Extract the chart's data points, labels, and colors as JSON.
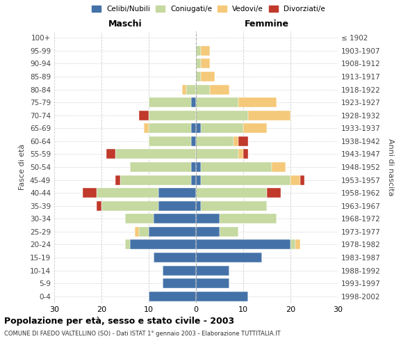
{
  "age_groups": [
    "0-4",
    "5-9",
    "10-14",
    "15-19",
    "20-24",
    "25-29",
    "30-34",
    "35-39",
    "40-44",
    "45-49",
    "50-54",
    "55-59",
    "60-64",
    "65-69",
    "70-74",
    "75-79",
    "80-84",
    "85-89",
    "90-94",
    "95-99",
    "100+"
  ],
  "birth_years": [
    "1998-2002",
    "1993-1997",
    "1988-1992",
    "1983-1987",
    "1978-1982",
    "1973-1977",
    "1968-1972",
    "1963-1967",
    "1958-1962",
    "1953-1957",
    "1948-1952",
    "1943-1947",
    "1938-1942",
    "1933-1937",
    "1928-1932",
    "1923-1927",
    "1918-1922",
    "1913-1917",
    "1908-1912",
    "1903-1907",
    "≤ 1902"
  ],
  "males": {
    "celibi": [
      10,
      7,
      7,
      9,
      14,
      10,
      9,
      8,
      8,
      1,
      1,
      0,
      1,
      1,
      0,
      1,
      0,
      0,
      0,
      0,
      0
    ],
    "coniugati": [
      0,
      0,
      0,
      0,
      1,
      2,
      6,
      12,
      13,
      15,
      13,
      17,
      9,
      9,
      10,
      9,
      2,
      0,
      0,
      0,
      0
    ],
    "vedovi": [
      0,
      0,
      0,
      0,
      0,
      1,
      0,
      0,
      0,
      0,
      0,
      0,
      0,
      1,
      0,
      0,
      1,
      0,
      0,
      0,
      0
    ],
    "divorziati": [
      0,
      0,
      0,
      0,
      0,
      0,
      0,
      1,
      3,
      1,
      0,
      2,
      0,
      0,
      2,
      0,
      0,
      0,
      0,
      0,
      0
    ]
  },
  "females": {
    "nubili": [
      11,
      7,
      7,
      14,
      20,
      5,
      5,
      1,
      0,
      1,
      1,
      0,
      0,
      1,
      0,
      0,
      0,
      0,
      0,
      0,
      0
    ],
    "coniugate": [
      0,
      0,
      0,
      0,
      1,
      4,
      12,
      14,
      15,
      19,
      15,
      9,
      8,
      9,
      11,
      9,
      3,
      1,
      1,
      1,
      0
    ],
    "vedove": [
      0,
      0,
      0,
      0,
      1,
      0,
      0,
      0,
      0,
      2,
      3,
      1,
      1,
      5,
      9,
      8,
      4,
      3,
      2,
      2,
      0
    ],
    "divorziate": [
      0,
      0,
      0,
      0,
      0,
      0,
      0,
      0,
      3,
      1,
      0,
      1,
      2,
      0,
      0,
      0,
      0,
      0,
      0,
      0,
      0
    ]
  },
  "colors": {
    "celibi": "#4472a8",
    "coniugati": "#c5d9a0",
    "vedovi": "#f5c97a",
    "divorziati": "#c0392b"
  },
  "title": "Popolazione per età, sesso e stato civile - 2003",
  "subtitle": "COMUNE DI FAEDO VALTELLINO (SO) - Dati ISTAT 1° gennaio 2003 - Elaborazione TUTTITALIA.IT",
  "ylabel": "Fasce di età",
  "ylabel_right": "Anni di nascita",
  "xlabel_left": "Maschi",
  "xlabel_right": "Femmine",
  "xlim": 30,
  "background_color": "#ffffff",
  "grid_color": "#cccccc"
}
